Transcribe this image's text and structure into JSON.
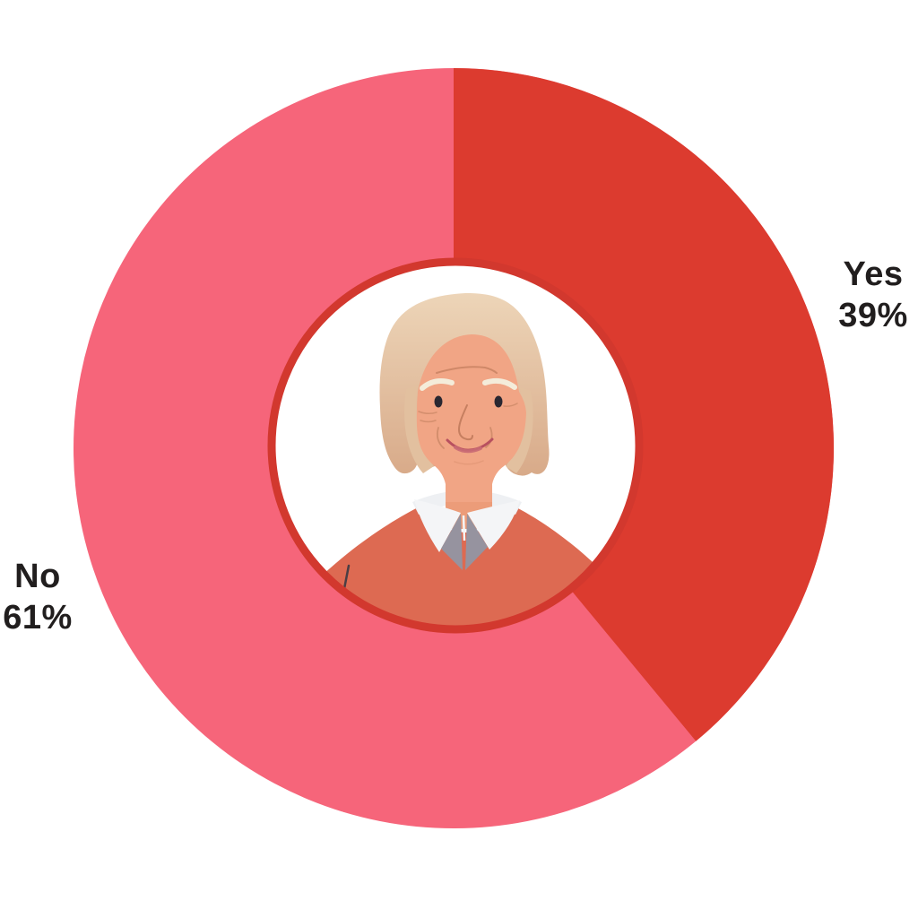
{
  "chart_data": {
    "type": "pie",
    "subtype": "donut",
    "categories": [
      "Yes",
      "No"
    ],
    "values": [
      39,
      61
    ],
    "unit": "%",
    "colors": [
      "#dc3b2f",
      "#f6657a"
    ],
    "start_angle_deg": 0,
    "direction": "clockwise",
    "hole_ratio": 0.49,
    "labels_position": "outside",
    "title": "",
    "legend": "none",
    "center_graphic": "elderly-woman-avatar"
  },
  "labels": {
    "yes": {
      "category": "Yes",
      "value": "39%"
    },
    "no": {
      "category": "No",
      "value": "61%"
    }
  },
  "colors": {
    "background": "#ffffff",
    "slice_yes": "#dc3b2f",
    "slice_no": "#f6657a",
    "inner_ring": "#d2382e",
    "inner_circle": "#ffffff",
    "label_text": "#211e1e",
    "sweater": "#dd6a52",
    "skin": "#f1a585",
    "hair_top": "#edd5b8",
    "hair_bottom": "#d8aa89"
  }
}
